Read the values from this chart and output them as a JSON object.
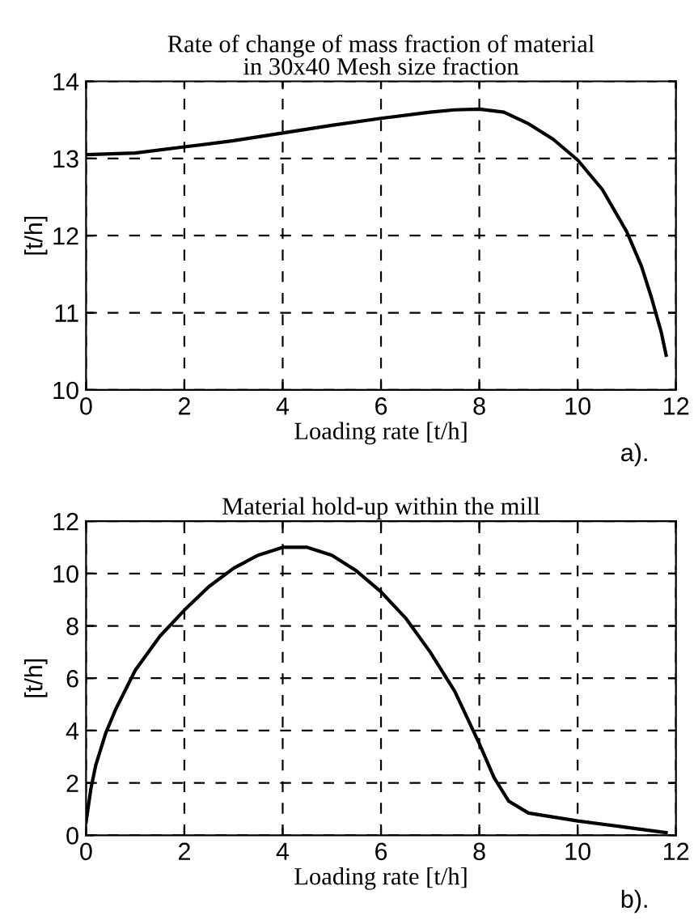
{
  "chart_data": [
    {
      "type": "line",
      "title": "Rate of change of mass fraction of material\nin 30x40 Mesh size fraction",
      "xlabel": "Loading rate [t/h]",
      "ylabel": "[t/h]",
      "annotations": [
        "a)."
      ],
      "xlim": [
        0,
        12
      ],
      "ylim": [
        10,
        14
      ],
      "xticks": [
        0,
        2,
        4,
        6,
        8,
        10,
        12
      ],
      "yticks": [
        10,
        11,
        12,
        13,
        14
      ],
      "grid": true,
      "series": [
        {
          "color": "#000000",
          "x": [
            0,
            1,
            2,
            3,
            4,
            5,
            6,
            7,
            7.5,
            8,
            8.5,
            9,
            9.5,
            10,
            10.5,
            11,
            11.3,
            11.5,
            11.7,
            11.8
          ],
          "values": [
            13.05,
            13.07,
            13.15,
            13.23,
            13.33,
            13.43,
            13.52,
            13.6,
            13.63,
            13.64,
            13.6,
            13.45,
            13.25,
            12.98,
            12.6,
            12.05,
            11.6,
            11.2,
            10.75,
            10.45
          ]
        }
      ]
    },
    {
      "type": "line",
      "title": "Material hold-up within the mill",
      "xlabel": "Loading rate [t/h]",
      "ylabel": "[t/h]",
      "annotations": [
        "b)."
      ],
      "xlim": [
        0,
        12
      ],
      "ylim": [
        0,
        12
      ],
      "xticks": [
        0,
        2,
        4,
        6,
        8,
        10,
        12
      ],
      "yticks": [
        0,
        2,
        4,
        6,
        8,
        10,
        12
      ],
      "grid": true,
      "series": [
        {
          "color": "#000000",
          "x": [
            0,
            0.1,
            0.2,
            0.4,
            0.6,
            1,
            1.5,
            2,
            2.5,
            3,
            3.5,
            4,
            4.5,
            5,
            5.5,
            6,
            6.5,
            7,
            7.5,
            8,
            8.3,
            8.6,
            9,
            10,
            11,
            11.8
          ],
          "values": [
            0.5,
            1.8,
            2.7,
            3.9,
            4.8,
            6.3,
            7.6,
            8.6,
            9.5,
            10.2,
            10.7,
            11,
            11,
            10.7,
            10.1,
            9.3,
            8.3,
            7,
            5.5,
            3.5,
            2.2,
            1.3,
            0.85,
            0.55,
            0.3,
            0.1
          ]
        }
      ]
    }
  ]
}
